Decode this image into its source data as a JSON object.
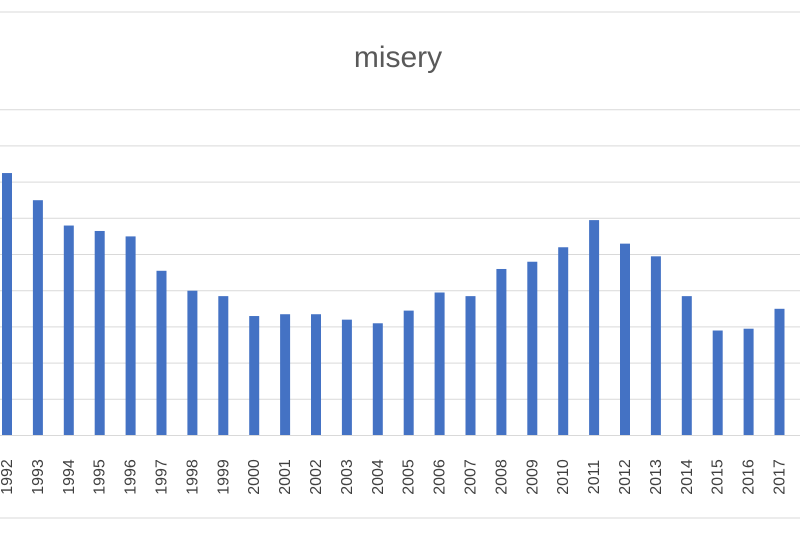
{
  "chart_data": {
    "type": "bar",
    "title": "misery",
    "categories": [
      "1992",
      "1993",
      "1994",
      "1995",
      "1996",
      "1997",
      "1998",
      "1999",
      "2000",
      "2001",
      "2002",
      "2003",
      "2004",
      "2005",
      "2006",
      "2007",
      "2008",
      "2009",
      "2010",
      "2011",
      "2012",
      "2013",
      "2014",
      "2015",
      "2016",
      "2017"
    ],
    "values": [
      14.5,
      13.0,
      11.6,
      11.3,
      11.0,
      9.1,
      8.0,
      7.7,
      6.6,
      6.7,
      6.7,
      6.4,
      6.2,
      6.9,
      7.9,
      7.7,
      9.2,
      9.6,
      10.4,
      11.9,
      10.6,
      9.9,
      7.7,
      5.8,
      5.9,
      7.0
    ],
    "ylim": [
      0,
      18
    ],
    "grid": true,
    "colors": {
      "bar": "#4472c4",
      "grid": "#d9d9d9"
    }
  }
}
